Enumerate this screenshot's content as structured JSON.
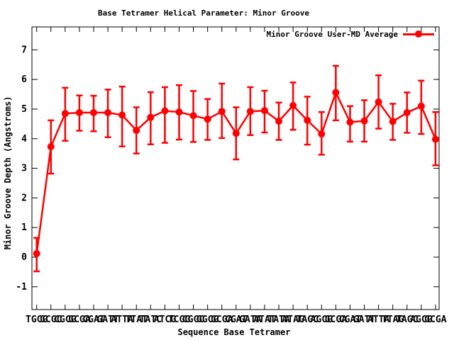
{
  "title": "Base Tetramer Helical Parameter: Minor Groove",
  "legend": {
    "label": "Minor Groove User-MD Average"
  },
  "axes": {
    "x_label": "Sequence Base Tetramer",
    "y_label": "Minor Groove Depth (Angstroms)"
  },
  "colors": {
    "series": "#ff0000",
    "axis": "#000000",
    "background": "#ffffff"
  },
  "chart_data": {
    "type": "line",
    "title": "Base Tetramer Helical Parameter: Minor Groove",
    "xlabel": "Sequence Base Tetramer",
    "ylabel": "Minor Groove Depth (Angstroms)",
    "legend_position": "top-right-inside",
    "grid": false,
    "marker": "filled-circle",
    "error_bars": true,
    "y_ticks": [
      -1,
      0,
      1,
      2,
      3,
      4,
      5,
      6,
      7
    ],
    "ylim": [
      -1.8,
      7.8
    ],
    "categories": [
      "TGCG",
      "GCGC",
      "CGCG",
      "GCGA",
      "CGAT",
      "GATT",
      "ATTA",
      "TTAT",
      "TATC",
      "ATCG",
      "TCGG",
      "CGGC",
      "GGCG",
      "GCGA",
      "CGAT",
      "GATA",
      "ATAT",
      "TATA",
      "ATAG",
      "TAGC",
      "AGCG",
      "GCGA",
      "CGAT",
      "GATT",
      "ATTA",
      "TTAG",
      "TAGC",
      "AGCG",
      "GCGA"
    ],
    "series": [
      {
        "name": "Minor Groove User-MD Average",
        "color": "#ff0000",
        "values": [
          0.12,
          3.73,
          4.85,
          4.88,
          4.88,
          4.88,
          4.8,
          4.28,
          4.72,
          4.94,
          4.9,
          4.78,
          4.66,
          4.92,
          4.18,
          4.92,
          4.95,
          4.59,
          5.12,
          4.62,
          4.16,
          5.56,
          4.56,
          4.6,
          5.24,
          4.58,
          4.88,
          5.1,
          3.98
        ],
        "err_low": [
          -0.48,
          2.82,
          3.93,
          4.27,
          4.25,
          4.05,
          3.74,
          3.5,
          3.81,
          3.86,
          3.97,
          3.89,
          3.96,
          4.02,
          3.3,
          4.12,
          4.21,
          3.96,
          4.3,
          3.8,
          3.46,
          4.62,
          3.9,
          3.9,
          4.34,
          3.96,
          4.2,
          4.16,
          3.1
        ],
        "err_high": [
          0.65,
          4.62,
          5.72,
          5.46,
          5.45,
          5.66,
          5.76,
          5.06,
          5.57,
          5.74,
          5.81,
          5.61,
          5.34,
          5.86,
          5.06,
          5.74,
          5.62,
          5.22,
          5.9,
          5.42,
          4.9,
          6.46,
          5.1,
          5.3,
          6.14,
          5.18,
          5.56,
          5.96,
          4.9
        ]
      }
    ]
  }
}
